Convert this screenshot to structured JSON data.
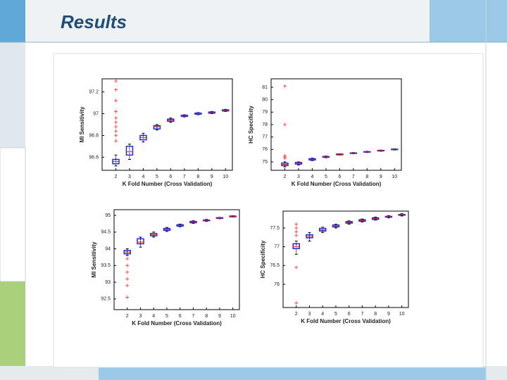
{
  "slide": {
    "title": "Results"
  },
  "chart_data": [
    {
      "type": "box",
      "ylabel": "MI Sensitivity",
      "xlabel": "K Fold Number (Cross Validation)",
      "x": [
        2,
        3,
        4,
        5,
        6,
        7,
        8,
        9,
        10
      ],
      "xlim": [
        1,
        10.5
      ],
      "xticks": [
        2,
        3,
        4,
        5,
        6,
        7,
        8,
        9,
        10
      ],
      "ylim": [
        96.48,
        97.32
      ],
      "yticks": [
        96.6,
        96.8,
        97,
        97.2
      ],
      "color": "#2a2ad0",
      "median_color": "#d02020",
      "outlier_color": "#e04040",
      "boxes": [
        {
          "low": 96.52,
          "q1": 96.54,
          "median": 96.56,
          "q3": 96.58,
          "high": 96.62,
          "outliers": [
            96.75,
            96.8,
            96.84,
            96.88,
            96.92,
            96.96,
            97.02,
            97.12,
            97.22,
            97.3
          ]
        },
        {
          "low": 96.58,
          "q1": 96.62,
          "median": 96.65,
          "q3": 96.7,
          "high": 96.72,
          "outliers": []
        },
        {
          "low": 96.74,
          "q1": 96.76,
          "median": 96.78,
          "q3": 96.8,
          "high": 96.82,
          "outliers": []
        },
        {
          "low": 96.85,
          "q1": 96.86,
          "median": 96.88,
          "q3": 96.89,
          "high": 96.9,
          "outliers": []
        },
        {
          "low": 96.92,
          "q1": 96.93,
          "median": 96.94,
          "q3": 96.95,
          "high": 96.96,
          "outliers": []
        },
        {
          "low": 96.97,
          "q1": 96.975,
          "median": 96.98,
          "q3": 96.985,
          "high": 96.99,
          "outliers": []
        },
        {
          "low": 96.99,
          "q1": 96.995,
          "median": 97.0,
          "q3": 97.005,
          "high": 97.01,
          "outliers": []
        },
        {
          "low": 97.0,
          "q1": 97.005,
          "median": 97.01,
          "q3": 97.015,
          "high": 97.02,
          "outliers": []
        },
        {
          "low": 97.02,
          "q1": 97.025,
          "median": 97.03,
          "q3": 97.035,
          "high": 97.04,
          "outliers": []
        }
      ]
    },
    {
      "type": "box",
      "ylabel": "HC Specificity",
      "xlabel": "K Fold Number (Cross Validation)",
      "x": [
        2,
        3,
        4,
        5,
        6,
        7,
        8,
        9,
        10
      ],
      "xlim": [
        1,
        10.5
      ],
      "xticks": [
        2,
        3,
        4,
        5,
        6,
        7,
        8,
        9,
        10
      ],
      "ylim": [
        74.32,
        81.68
      ],
      "yticks": [
        75,
        76,
        77,
        78,
        79,
        80,
        81
      ],
      "color": "#2a2ad0",
      "median_color": "#d02020",
      "outlier_color": "#e04040",
      "boxes": [
        {
          "low": 74.6,
          "q1": 74.7,
          "median": 74.8,
          "q3": 74.9,
          "high": 75.0,
          "outliers": [
            75.3,
            75.4,
            75.5,
            78,
            81.1
          ]
        },
        {
          "low": 74.75,
          "q1": 74.82,
          "median": 74.9,
          "q3": 74.95,
          "high": 75.0,
          "outliers": []
        },
        {
          "low": 75.1,
          "q1": 75.15,
          "median": 75.2,
          "q3": 75.25,
          "high": 75.3,
          "outliers": []
        },
        {
          "low": 75.33,
          "q1": 75.37,
          "median": 75.4,
          "q3": 75.43,
          "high": 75.47,
          "outliers": []
        },
        {
          "low": 75.55,
          "q1": 75.57,
          "median": 75.6,
          "q3": 75.63,
          "high": 75.65,
          "outliers": []
        },
        {
          "low": 75.65,
          "q1": 75.68,
          "median": 75.7,
          "q3": 75.72,
          "high": 75.75,
          "outliers": []
        },
        {
          "low": 75.75,
          "q1": 75.78,
          "median": 75.8,
          "q3": 75.82,
          "high": 75.85,
          "outliers": []
        },
        {
          "low": 75.85,
          "q1": 75.88,
          "median": 75.9,
          "q3": 75.92,
          "high": 75.95,
          "outliers": []
        },
        {
          "low": 75.95,
          "q1": 75.98,
          "median": 76.0,
          "q3": 76.02,
          "high": 76.05,
          "outliers": []
        }
      ]
    },
    {
      "type": "box",
      "ylabel": "MI Sensitivity",
      "xlabel": "K Fold Number (Cross Validation)",
      "x": [
        2,
        3,
        4,
        5,
        6,
        7,
        8,
        9,
        10
      ],
      "xlim": [
        1,
        10.5
      ],
      "xticks": [
        2,
        3,
        4,
        5,
        6,
        7,
        8,
        9,
        10
      ],
      "ylim": [
        92.18,
        95.17
      ],
      "yticks": [
        92.5,
        93,
        93.5,
        94,
        94.5,
        95
      ],
      "color": "#2a2ad0",
      "median_color": "#d02020",
      "outlier_color": "#e04040",
      "boxes": [
        {
          "low": 93.8,
          "q1": 93.85,
          "median": 93.9,
          "q3": 93.95,
          "high": 94.0,
          "outliers": [
            93.7,
            93.5,
            93.3,
            93.1,
            92.9,
            92.55
          ]
        },
        {
          "low": 94.05,
          "q1": 94.15,
          "median": 94.2,
          "q3": 94.3,
          "high": 94.35,
          "outliers": []
        },
        {
          "low": 94.35,
          "q1": 94.39,
          "median": 94.42,
          "q3": 94.46,
          "high": 94.5,
          "outliers": []
        },
        {
          "low": 94.52,
          "q1": 94.55,
          "median": 94.58,
          "q3": 94.61,
          "high": 94.64,
          "outliers": []
        },
        {
          "low": 94.66,
          "q1": 94.68,
          "median": 94.7,
          "q3": 94.72,
          "high": 94.74,
          "outliers": []
        },
        {
          "low": 94.76,
          "q1": 94.78,
          "median": 94.8,
          "q3": 94.82,
          "high": 94.84,
          "outliers": []
        },
        {
          "low": 94.82,
          "q1": 94.84,
          "median": 94.85,
          "q3": 94.86,
          "high": 94.88,
          "outliers": []
        },
        {
          "low": 94.9,
          "q1": 94.91,
          "median": 94.92,
          "q3": 94.93,
          "high": 94.94,
          "outliers": []
        },
        {
          "low": 94.95,
          "q1": 94.96,
          "median": 94.97,
          "q3": 94.98,
          "high": 94.99,
          "outliers": []
        }
      ]
    },
    {
      "type": "box",
      "ylabel": "HC Specificity",
      "xlabel": "K Fold Number (Cross Validation)",
      "x": [
        2,
        3,
        4,
        5,
        6,
        7,
        8,
        9,
        10
      ],
      "xlim": [
        1,
        10.5
      ],
      "xticks": [
        2,
        3,
        4,
        5,
        6,
        7,
        8,
        9,
        10
      ],
      "ylim": [
        75.38,
        77.95
      ],
      "yticks": [
        76,
        76.5,
        77,
        77.5
      ],
      "color": "#2a2ad0",
      "median_color": "#d02020",
      "outlier_color": "#e04040",
      "boxes": [
        {
          "low": 76.8,
          "q1": 76.95,
          "median": 77.0,
          "q3": 77.08,
          "high": 77.15,
          "outliers": [
            77.3,
            77.4,
            77.5,
            77.6,
            76.45,
            75.5
          ]
        },
        {
          "low": 77.15,
          "q1": 77.24,
          "median": 77.28,
          "q3": 77.32,
          "high": 77.38,
          "outliers": []
        },
        {
          "low": 77.38,
          "q1": 77.42,
          "median": 77.45,
          "q3": 77.49,
          "high": 77.52,
          "outliers": []
        },
        {
          "low": 77.5,
          "q1": 77.53,
          "median": 77.55,
          "q3": 77.58,
          "high": 77.6,
          "outliers": []
        },
        {
          "low": 77.6,
          "q1": 77.63,
          "median": 77.65,
          "q3": 77.67,
          "high": 77.69,
          "outliers": []
        },
        {
          "low": 77.66,
          "q1": 77.68,
          "median": 77.7,
          "q3": 77.72,
          "high": 77.74,
          "outliers": []
        },
        {
          "low": 77.71,
          "q1": 77.73,
          "median": 77.75,
          "q3": 77.77,
          "high": 77.79,
          "outliers": []
        },
        {
          "low": 77.77,
          "q1": 77.79,
          "median": 77.8,
          "q3": 77.81,
          "high": 77.83,
          "outliers": []
        },
        {
          "low": 77.82,
          "q1": 77.84,
          "median": 77.85,
          "q3": 77.86,
          "high": 77.88,
          "outliers": []
        }
      ]
    }
  ]
}
